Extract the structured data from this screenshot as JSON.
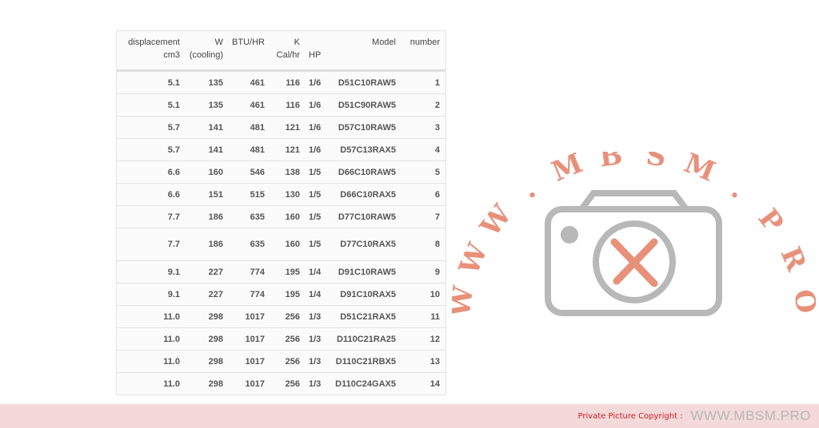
{
  "table": {
    "headers": [
      [
        "displacement",
        "cm3"
      ],
      [
        "W",
        "(cooling)"
      ],
      [
        "BTU/HR",
        ""
      ],
      [
        "K",
        "Cal/hr"
      ],
      [
        "",
        "HP"
      ],
      [
        "Model",
        ""
      ],
      [
        "number",
        ""
      ]
    ],
    "rows": [
      [
        "5.1",
        "135",
        "461",
        "116",
        "1/6",
        "D51C10RAW5",
        "1"
      ],
      [
        "5.1",
        "135",
        "461",
        "116",
        "1/6",
        "D51C90RAW5",
        "2"
      ],
      [
        "5.7",
        "141",
        "481",
        "121",
        "1/6",
        "D57C10RAW5",
        "3"
      ],
      [
        "5.7",
        "141",
        "481",
        "121",
        "1/6",
        "D57C13RAX5",
        "4"
      ],
      [
        "6.6",
        "160",
        "546",
        "138",
        "1/5",
        "D66C10RAW5",
        "5"
      ],
      [
        "6.6",
        "151",
        "515",
        "130",
        "1/5",
        "D66C10RAX5",
        "6"
      ],
      [
        "7.7",
        "186",
        "635",
        "160",
        "1/5",
        "D77C10RAW5",
        "7"
      ],
      [
        "7.7",
        "186",
        "635",
        "160",
        "1/5",
        "D77C10RAX5",
        "8"
      ],
      [
        "9.1",
        "227",
        "774",
        "195",
        "1/4",
        "D91C10RAW5",
        "9"
      ],
      [
        "9.1",
        "227",
        "774",
        "195",
        "1/4",
        "D91C10RAX5",
        "10"
      ],
      [
        "11.0",
        "298",
        "1017",
        "256",
        "1/3",
        "D51C21RAX5",
        "11"
      ],
      [
        "11.0",
        "298",
        "1017",
        "256",
        "1/3",
        "D110C21RA25",
        "12"
      ],
      [
        "11.0",
        "298",
        "1017",
        "256",
        "1/3",
        "D110C21RBX5",
        "13"
      ],
      [
        "11.0",
        "298",
        "1017",
        "256",
        "1/3",
        "D110C24GAX5",
        "14"
      ]
    ]
  },
  "watermark": {
    "text": "WWW.MBSM.PRO",
    "color": "#e8907a"
  },
  "footer": {
    "copyright": "Private Picture Copyright :",
    "site": "WWW.MBSM.PRO"
  }
}
